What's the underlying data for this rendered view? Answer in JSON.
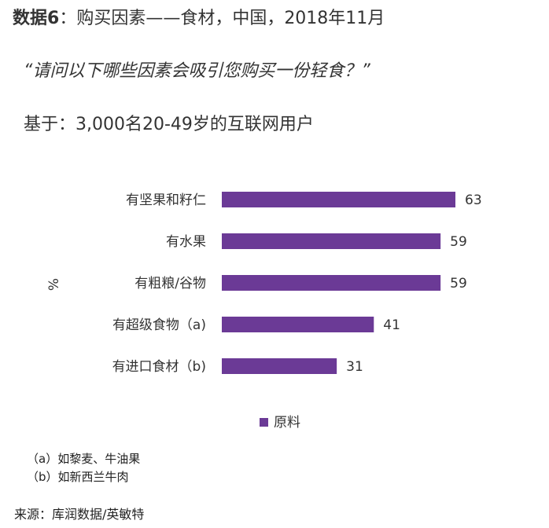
{
  "header": {
    "figure_label": "数据6",
    "title_rest": "：购买因素——食材，中国，2018年11月",
    "question": "“请问以下哪些因素会吸引您购买一份轻食？”",
    "base": "基于：3,000名20-49岁的互联网用户"
  },
  "chart_data": {
    "type": "bar",
    "orientation": "horizontal",
    "categories": [
      "有坚果和籽仁",
      "有水果",
      "有粗粮/谷物",
      "有超级食物（a)",
      "有进口食材（b)"
    ],
    "series": [
      {
        "name": "原料",
        "values": [
          63,
          59,
          59,
          41,
          31
        ],
        "color": "#6B3A96"
      }
    ],
    "ylabel": "%",
    "xlim": [
      0,
      63
    ],
    "grid": false,
    "legend_position": "bottom",
    "data_labels": true
  },
  "footnotes": {
    "a": "（a）如黎麦、牛油果",
    "b": "（b）如新西兰牛肉"
  },
  "source": "来源：库润数据/英敏特"
}
